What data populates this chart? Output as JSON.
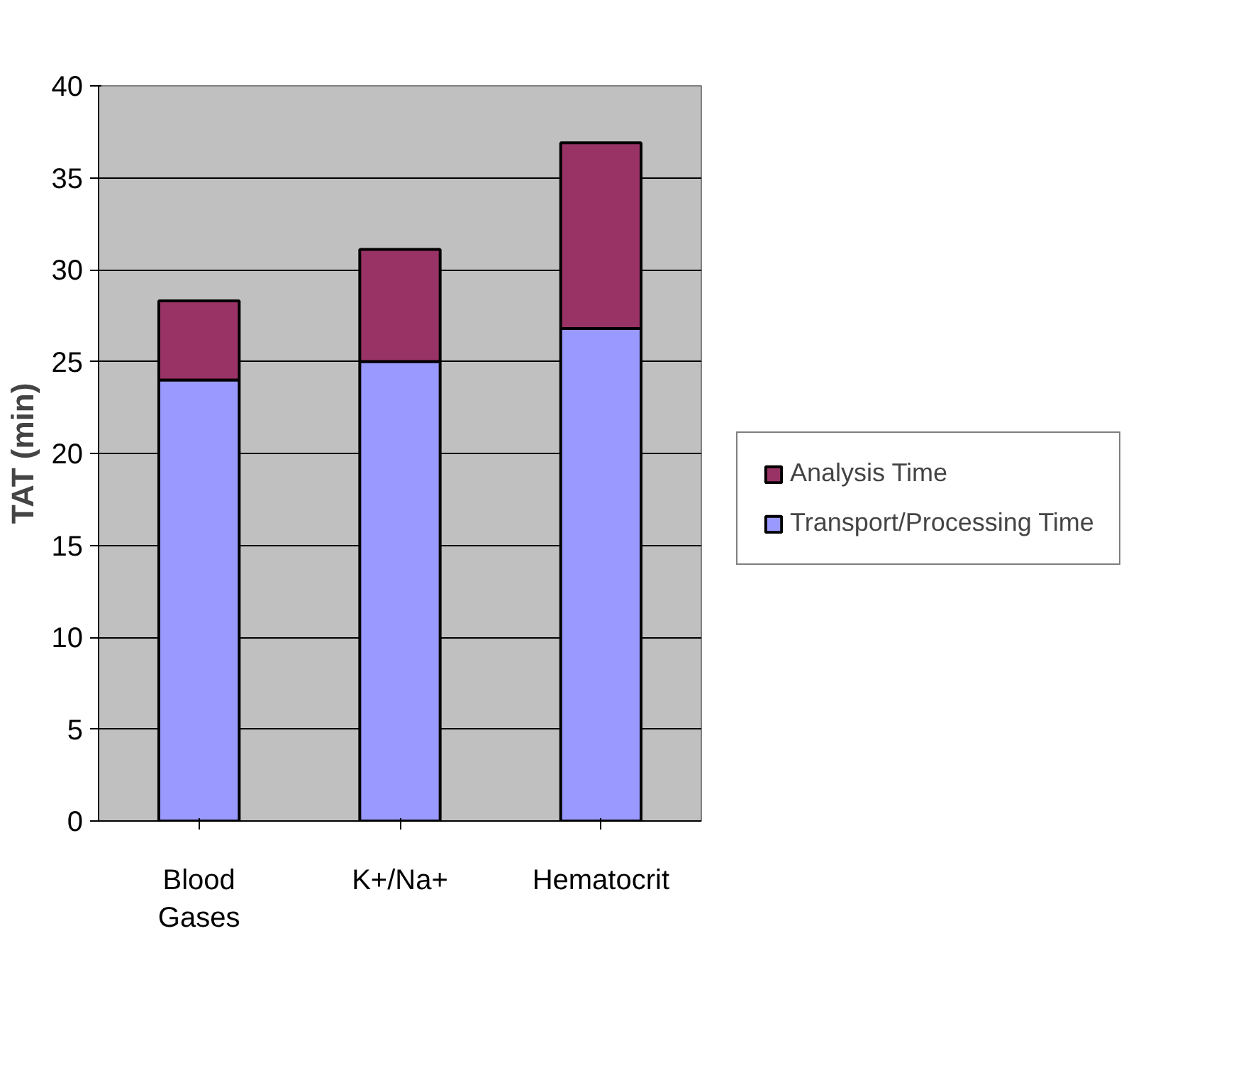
{
  "chart_data": {
    "type": "bar",
    "stacked": true,
    "ylabel": "TAT (min)",
    "categories": [
      "Blood Gases",
      "K+/Na+",
      "Hematocrit"
    ],
    "series": [
      {
        "name": "Transport/Processing Time",
        "color": "#9999ff",
        "values": [
          24.0,
          25.0,
          26.8
        ]
      },
      {
        "name": "Analysis Time",
        "color": "#993366",
        "values": [
          4.3,
          6.1,
          10.1
        ]
      }
    ],
    "ylim": [
      0,
      40
    ],
    "yticks": [
      0,
      5,
      10,
      15,
      20,
      25,
      30,
      35,
      40
    ],
    "grid": "y",
    "legend": "right"
  }
}
